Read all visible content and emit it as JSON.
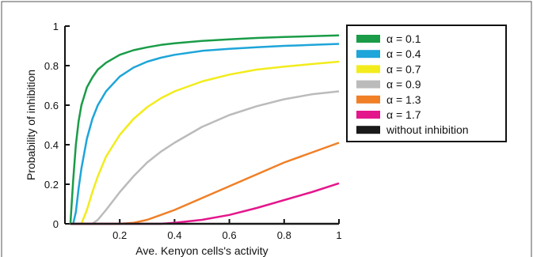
{
  "chart_data": {
    "type": "line",
    "title": "",
    "xlabel": "Ave. Kenyon cells's activity",
    "ylabel": "Probability of inhibition",
    "xlim": [
      0,
      1
    ],
    "ylim": [
      0,
      1
    ],
    "x_ticks": [
      0.2,
      0.4,
      0.6,
      0.8,
      1
    ],
    "x_tick_labels": [
      "0.2",
      "0.4",
      "0.6",
      "0.8",
      "1"
    ],
    "y_ticks": [
      0,
      0.2,
      0.4,
      0.6,
      0.8,
      1
    ],
    "y_tick_labels": [
      "0",
      "0.2",
      "0.4",
      "0.6",
      "0.8",
      "1"
    ],
    "grid": false,
    "legend_position": "top-right",
    "x": [
      0.02,
      0.03,
      0.04,
      0.05,
      0.06,
      0.08,
      0.1,
      0.12,
      0.15,
      0.2,
      0.25,
      0.3,
      0.35,
      0.4,
      0.5,
      0.6,
      0.7,
      0.8,
      0.9,
      1.0
    ],
    "series": [
      {
        "name": "α = 0.1",
        "color": "#1a9c48",
        "values": [
          0.0,
          0.22,
          0.4,
          0.52,
          0.6,
          0.69,
          0.74,
          0.78,
          0.815,
          0.855,
          0.878,
          0.893,
          0.905,
          0.913,
          0.925,
          0.933,
          0.94,
          0.945,
          0.949,
          0.953
        ]
      },
      {
        "name": "α = 0.4",
        "color": "#1ea5d9",
        "values": [
          0.0,
          0.0,
          0.06,
          0.18,
          0.28,
          0.43,
          0.53,
          0.6,
          0.67,
          0.745,
          0.79,
          0.82,
          0.84,
          0.855,
          0.875,
          0.885,
          0.893,
          0.9,
          0.905,
          0.91
        ]
      },
      {
        "name": "α = 0.7",
        "color": "#f2ec1c",
        "values": [
          0.0,
          0.0,
          0.0,
          0.0,
          0.0,
          0.07,
          0.16,
          0.24,
          0.34,
          0.45,
          0.53,
          0.59,
          0.635,
          0.67,
          0.72,
          0.755,
          0.78,
          0.795,
          0.808,
          0.82
        ]
      },
      {
        "name": "α = 0.9",
        "color": "#bbbbbb",
        "values": [
          0.0,
          0.0,
          0.0,
          0.0,
          0.0,
          0.0,
          0.0,
          0.02,
          0.07,
          0.16,
          0.24,
          0.31,
          0.365,
          0.41,
          0.49,
          0.55,
          0.595,
          0.63,
          0.655,
          0.67
        ]
      },
      {
        "name": "α = 1.3",
        "color": "#f07f26",
        "values": [
          0.0,
          0.0,
          0.0,
          0.0,
          0.0,
          0.0,
          0.0,
          0.0,
          0.0,
          0.0,
          0.005,
          0.02,
          0.045,
          0.07,
          0.13,
          0.19,
          0.25,
          0.31,
          0.36,
          0.41
        ]
      },
      {
        "name": "α = 1.7",
        "color": "#e4168c",
        "values": [
          0.0,
          0.0,
          0.0,
          0.0,
          0.0,
          0.0,
          0.0,
          0.0,
          0.0,
          0.0,
          0.0,
          0.0,
          0.0,
          0.005,
          0.02,
          0.045,
          0.08,
          0.12,
          0.16,
          0.205
        ]
      },
      {
        "name": "without inhibition",
        "color": "#1a1a1a",
        "values": [
          0.0,
          0.0,
          0.0,
          0.0,
          0.0,
          0.0,
          0.0,
          0.0,
          0.0,
          0.0,
          0.0,
          0.0,
          0.0,
          0.0,
          0.0,
          0.0,
          0.0,
          0.0,
          0.0,
          0.0
        ]
      }
    ]
  }
}
